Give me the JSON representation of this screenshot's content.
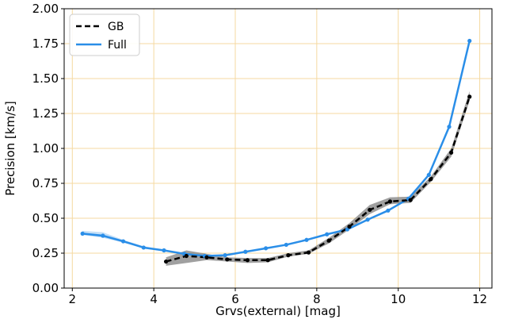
{
  "chart_data": {
    "type": "line",
    "title": "",
    "xlabel": "Grvs(external) [mag]",
    "ylabel": "Precision [km/s]",
    "xlim": [
      1.8,
      12.3
    ],
    "ylim": [
      0.0,
      2.0
    ],
    "xticks": [
      2,
      4,
      6,
      8,
      10,
      12
    ],
    "xtick_labels": [
      "2",
      "4",
      "6",
      "8",
      "10",
      "12"
    ],
    "yticks": [
      0.0,
      0.25,
      0.5,
      0.75,
      1.0,
      1.25,
      1.5,
      1.75,
      2.0
    ],
    "ytick_labels": [
      "0.00",
      "0.25",
      "0.50",
      "0.75",
      "1.00",
      "1.25",
      "1.50",
      "1.75",
      "2.00"
    ],
    "grid": true,
    "grid_color": "#f5d9a0",
    "legend_position": "upper-left",
    "series": [
      {
        "name": "GB",
        "color": "#000000",
        "band_color": "#808080",
        "style": "dashed",
        "x": [
          4.3,
          4.8,
          5.3,
          5.8,
          6.3,
          6.8,
          7.3,
          7.8,
          8.3,
          8.8,
          9.3,
          9.8,
          10.3,
          10.8,
          11.3,
          11.75
        ],
        "y": [
          0.19,
          0.23,
          0.22,
          0.205,
          0.2,
          0.2,
          0.235,
          0.255,
          0.34,
          0.44,
          0.56,
          0.62,
          0.63,
          0.78,
          0.97,
          1.37
        ],
        "lower": [
          0.16,
          0.18,
          0.2,
          0.19,
          0.18,
          0.185,
          0.225,
          0.245,
          0.32,
          0.42,
          0.53,
          0.6,
          0.61,
          0.76,
          0.94,
          1.34
        ],
        "upper": [
          0.22,
          0.27,
          0.245,
          0.22,
          0.215,
          0.215,
          0.25,
          0.27,
          0.36,
          0.465,
          0.595,
          0.65,
          0.655,
          0.8,
          1.0,
          1.41
        ]
      },
      {
        "name": "Full",
        "color": "#2a8ee8",
        "band_color": "#9cc9f2",
        "style": "solid",
        "x": [
          2.25,
          2.75,
          3.25,
          3.75,
          4.25,
          4.75,
          5.25,
          5.75,
          6.25,
          6.75,
          7.25,
          7.75,
          8.25,
          8.75,
          9.25,
          9.75,
          10.25,
          10.75,
          11.25,
          11.75
        ],
        "y": [
          0.39,
          0.375,
          0.335,
          0.29,
          0.27,
          0.245,
          0.23,
          0.235,
          0.26,
          0.285,
          0.31,
          0.345,
          0.385,
          0.42,
          0.49,
          0.555,
          0.64,
          0.81,
          1.155,
          1.77
        ],
        "lower": [
          0.38,
          0.36,
          0.325,
          0.285,
          0.265,
          0.24,
          0.225,
          0.23,
          0.255,
          0.28,
          0.305,
          0.34,
          0.38,
          0.415,
          0.485,
          0.55,
          0.635,
          0.805,
          1.15,
          1.765
        ],
        "upper": [
          0.41,
          0.4,
          0.345,
          0.3,
          0.275,
          0.25,
          0.235,
          0.24,
          0.265,
          0.29,
          0.315,
          0.35,
          0.39,
          0.425,
          0.495,
          0.56,
          0.645,
          0.815,
          1.16,
          1.775
        ]
      }
    ]
  }
}
